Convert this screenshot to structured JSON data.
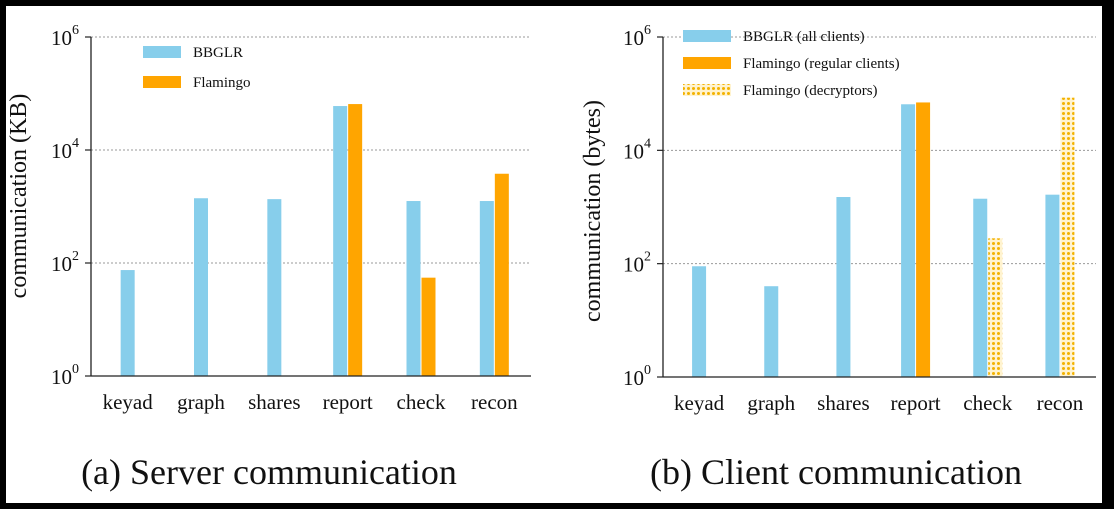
{
  "chart_data": [
    {
      "type": "bar",
      "panel": "a",
      "caption": "(a) Server communication",
      "ylabel": "communication (KB)",
      "yscale": "log",
      "ylim": [
        1,
        1000000
      ],
      "yticks": [
        {
          "value": 1,
          "base": "10",
          "exp": "0"
        },
        {
          "value": 100,
          "base": "10",
          "exp": "2"
        },
        {
          "value": 10000,
          "base": "10",
          "exp": "4"
        },
        {
          "value": 1000000,
          "base": "10",
          "exp": "6"
        }
      ],
      "grid": true,
      "legend_position": "top-left",
      "categories": [
        "keyad",
        "graph",
        "shares",
        "report",
        "check",
        "recon"
      ],
      "series": [
        {
          "name": "BBGLR",
          "color": "#87ceeb",
          "pattern": "solid",
          "values": [
            75,
            1400,
            1350,
            60000,
            1250,
            1250
          ]
        },
        {
          "name": "Flamingo",
          "color": "#ffa500",
          "pattern": "solid",
          "values": [
            null,
            null,
            null,
            65000,
            55,
            3800
          ]
        }
      ]
    },
    {
      "type": "bar",
      "panel": "b",
      "caption": "(b) Client communication",
      "ylabel": "communication (bytes)",
      "yscale": "log",
      "ylim": [
        1,
        1000000
      ],
      "yticks": [
        {
          "value": 1,
          "base": "10",
          "exp": "0"
        },
        {
          "value": 100,
          "base": "10",
          "exp": "2"
        },
        {
          "value": 10000,
          "base": "10",
          "exp": "4"
        },
        {
          "value": 1000000,
          "base": "10",
          "exp": "6"
        }
      ],
      "grid": true,
      "legend_position": "top-left",
      "categories": [
        "keyad",
        "graph",
        "shares",
        "report",
        "check",
        "recon"
      ],
      "series": [
        {
          "name": "BBGLR (all clients)",
          "color": "#87ceeb",
          "pattern": "solid",
          "values": [
            90,
            40,
            1500,
            65000,
            1400,
            1650
          ]
        },
        {
          "name": "Flamingo (regular clients)",
          "color": "#ffa500",
          "pattern": "solid",
          "values": [
            null,
            null,
            null,
            70000,
            null,
            null
          ]
        },
        {
          "name": "Flamingo (decryptors)",
          "color": "#ffc84a",
          "pattern": "dotted",
          "values": [
            null,
            null,
            null,
            null,
            280,
            85000
          ]
        }
      ]
    }
  ]
}
